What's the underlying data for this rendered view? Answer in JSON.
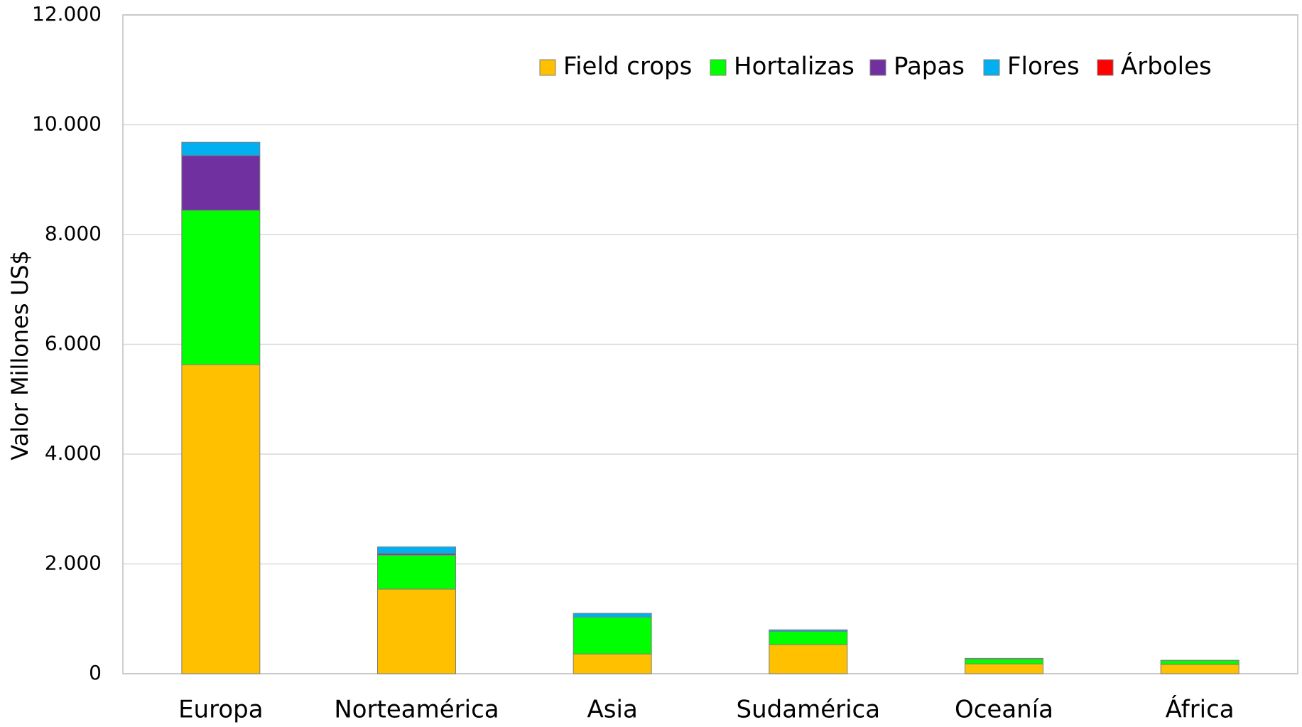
{
  "chart_data": {
    "type": "stacked_bar",
    "y_label": "Valor Millones US$",
    "categories": [
      "Europa",
      "Norteamérica",
      "Asia",
      "Sudamérica",
      "Oceanía",
      "África"
    ],
    "series": [
      {
        "name": "Field crops",
        "color": "#ffc000",
        "values": [
          5630,
          1540,
          360,
          530,
          180,
          170
        ]
      },
      {
        "name": "Hortalizas",
        "color": "#00ff00",
        "values": [
          2810,
          620,
          670,
          240,
          90,
          70
        ]
      },
      {
        "name": "Papas",
        "color": "#7030a0",
        "values": [
          1000,
          30,
          0,
          0,
          0,
          0
        ]
      },
      {
        "name": "Flores",
        "color": "#00b0f0",
        "values": [
          240,
          120,
          70,
          30,
          10,
          5
        ]
      },
      {
        "name": "Árboles",
        "color": "#ff0000",
        "values": [
          0,
          0,
          0,
          0,
          0,
          0
        ]
      }
    ],
    "ylim": [
      0,
      12000
    ],
    "yticks": [
      0,
      {
        "value": 2000,
        "label": "2.000"
      },
      {
        "value": 4000,
        "label": "4.000"
      },
      {
        "value": 6000,
        "label": "6.000"
      },
      {
        "value": 8000,
        "label": "8.000"
      },
      {
        "value": 10000,
        "label": "10.000"
      },
      {
        "value": 12000,
        "label": "12.000"
      }
    ],
    "grid": true,
    "legend": "top"
  }
}
